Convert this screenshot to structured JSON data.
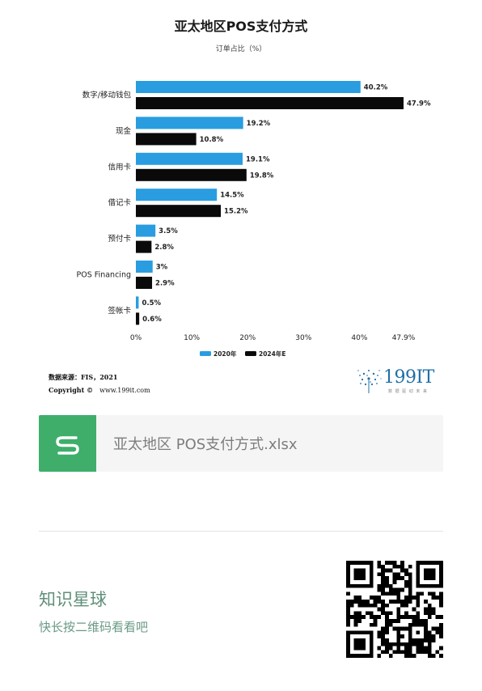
{
  "chart_data": {
    "type": "bar",
    "orientation": "horizontal",
    "title": "亚太地区POS支付方式",
    "subtitle": "订单占比（%）",
    "categories": [
      "数字/移动钱包",
      "现金",
      "信用卡",
      "借记卡",
      "预付卡",
      "POS Financing",
      "签帐卡"
    ],
    "series": [
      {
        "name": "2020年",
        "color": "#2a9de0",
        "values": [
          40.2,
          19.2,
          19.1,
          14.5,
          3.5,
          3,
          0.5
        ],
        "labels": [
          "40.2%",
          "19.2%",
          "19.1%",
          "14.5%",
          "3.5%",
          "3%",
          "0.5%"
        ]
      },
      {
        "name": "2024年E",
        "color": "#0a0a0a",
        "values": [
          47.9,
          10.8,
          19.8,
          15.2,
          2.8,
          2.9,
          0.6
        ],
        "labels": [
          "47.9%",
          "10.8%",
          "19.8%",
          "15.2%",
          "2.8%",
          "2.9%",
          "0.6%"
        ]
      }
    ],
    "xlim": [
      0,
      47.9
    ],
    "xticks": [
      0,
      10,
      20,
      30,
      40,
      47.9
    ],
    "xtick_labels": [
      "0%",
      "10%",
      "20%",
      "30%",
      "40%",
      "47.9%"
    ],
    "legend_position": "bottom",
    "grid": false
  },
  "source": {
    "line1": "数据来源：FIS，2021",
    "copyright": "Copyright ©",
    "url": "www.199it.com"
  },
  "logo": {
    "text": "199IT",
    "sub": "数 据 驱 动 未 来",
    "color": "#1f6fa8"
  },
  "file": {
    "name": "亚太地区 POS支付方式.xlsx",
    "icon": "spreadsheet-s-icon",
    "icon_color": "#3fae6b"
  },
  "planet": {
    "title": "知识星球",
    "subtitle": "快长按二维码看看吧"
  }
}
